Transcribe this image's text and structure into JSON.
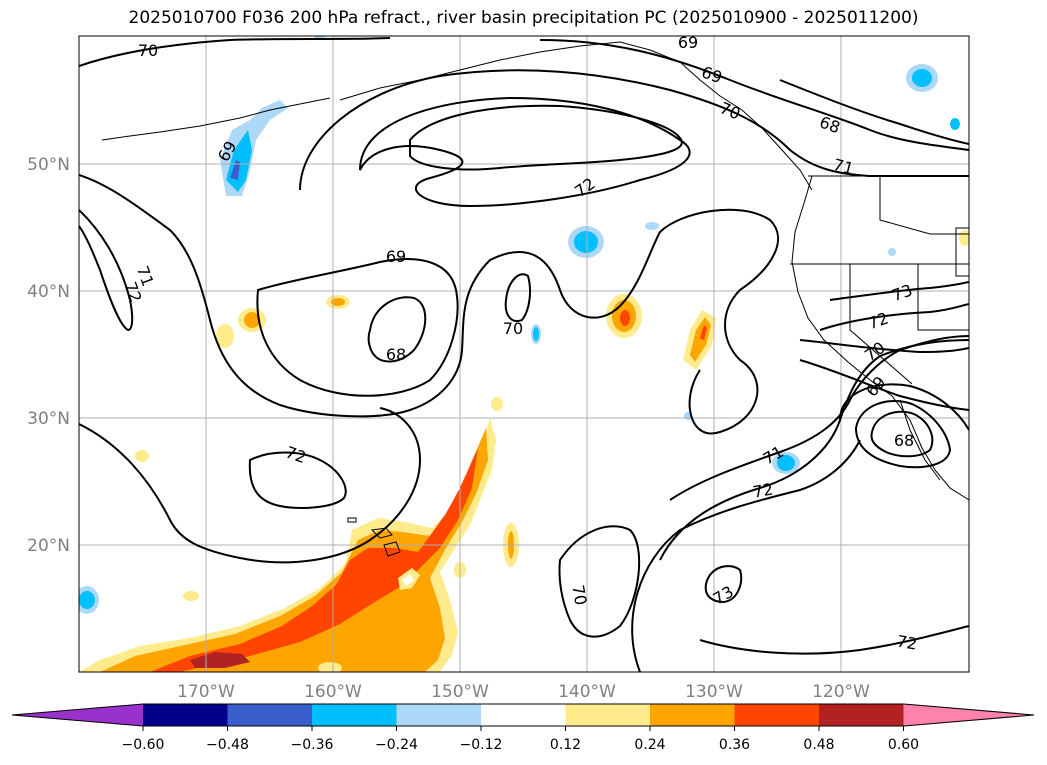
{
  "map": {
    "title": "2025010700 F036 200 hPa refract., river basin precipitation PC (2025010900 - 2025011200)",
    "lat_labels": [
      "50°N",
      "40°N",
      "30°N",
      "20°N"
    ],
    "lon_labels": [
      "170°W",
      "160°W",
      "150°W",
      "140°W",
      "130°W",
      "120°W"
    ],
    "contour_labels": [
      "70",
      "69",
      "69",
      "70",
      "68",
      "69",
      "71",
      "72",
      "69",
      "71",
      "72",
      "68",
      "70",
      "73",
      "72",
      "70",
      "69",
      "68",
      "72",
      "71",
      "72",
      "70",
      "73",
      "72"
    ],
    "colorbar": {
      "ticks": [
        "−0.60",
        "−0.48",
        "−0.36",
        "−0.24",
        "−0.12",
        "0.12",
        "0.24",
        "0.36",
        "0.48",
        "0.60"
      ],
      "colors": [
        "#9932cc",
        "#00008b",
        "#3a5fcd",
        "#00bfff",
        "#add8f7",
        "#ffffff",
        "#ffeb8c",
        "#ffa500",
        "#ff4500",
        "#b22222",
        "#ff82ab",
        "#ff82ab"
      ]
    }
  }
}
